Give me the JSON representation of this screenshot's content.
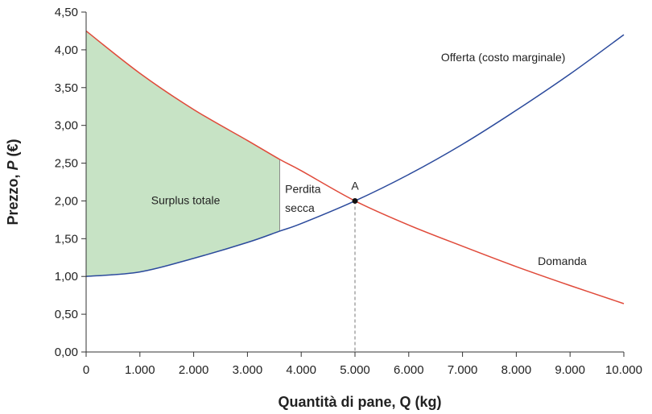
{
  "chart_data": {
    "type": "line",
    "xlabel": "Quantità di pane, Q (kg)",
    "ylabel_prefix": "Prezzo, ",
    "ylabel_var": "P",
    "ylabel_suffix": " (€)",
    "xlim": [
      0,
      10000
    ],
    "ylim": [
      0,
      4.5
    ],
    "x_ticks": [
      0,
      1000,
      2000,
      3000,
      4000,
      5000,
      6000,
      7000,
      8000,
      9000,
      10000
    ],
    "x_tick_labels": [
      "0",
      "1.000",
      "2.000",
      "3.000",
      "4.000",
      "5.000",
      "6.000",
      "7.000",
      "8.000",
      "9.000",
      "10.000"
    ],
    "y_ticks": [
      0,
      0.5,
      1,
      1.5,
      2,
      2.5,
      3,
      3.5,
      4,
      4.5
    ],
    "y_tick_labels": [
      "0,00",
      "0,50",
      "1,00",
      "1,50",
      "2,00",
      "2,50",
      "3,00",
      "3,50",
      "4,00",
      "4,50"
    ],
    "series": [
      {
        "name": "Offerta (costo marginale)",
        "color": "#2b4a9c",
        "x": [
          0,
          1000,
          2000,
          3000,
          3600,
          4000,
          5000,
          6000,
          7000,
          8000,
          9000,
          10000
        ],
        "y": [
          1.0,
          1.06,
          1.24,
          1.45,
          1.6,
          1.7,
          2.0,
          2.35,
          2.75,
          3.2,
          3.68,
          4.2
        ]
      },
      {
        "name": "Domanda",
        "color": "#e04a3a",
        "x": [
          0,
          1000,
          2000,
          3000,
          3600,
          4000,
          5000,
          6000,
          7000,
          8000,
          9000,
          10000
        ],
        "y": [
          4.25,
          3.69,
          3.21,
          2.8,
          2.55,
          2.4,
          2.0,
          1.68,
          1.4,
          1.13,
          0.88,
          0.64
        ]
      }
    ],
    "equilibrium": {
      "label": "A",
      "x": 5000,
      "y": 2.0
    },
    "quantity_limit": 3600,
    "surplus_fill_color": "#c7e3c5",
    "annotations": {
      "surplus": "Surplus totale",
      "deadweight_line1": "Perdita",
      "deadweight_line2": "secca"
    }
  }
}
